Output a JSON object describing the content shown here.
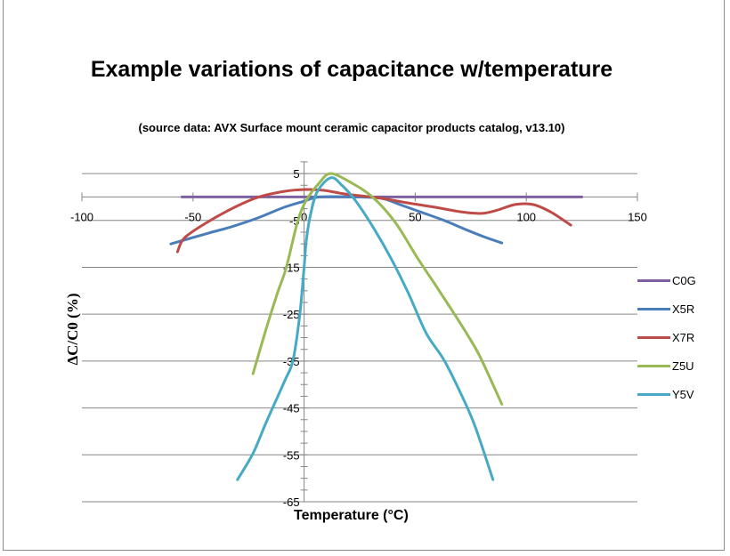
{
  "chart_data": {
    "type": "line",
    "title": "Example variations of capacitance w/temperature",
    "subtitle": "(source data: AVX Surface mount ceramic capacitor products catalog, v13.10)",
    "xlabel": "Temperature (°C)",
    "ylabel": "ΔC/C0 (%)",
    "xlim": [
      -100,
      150
    ],
    "ylim": [
      -65,
      7.5
    ],
    "x_ticks": [
      "-100",
      "-50",
      "0",
      "50",
      "100",
      "150"
    ],
    "y_ticks": [
      "5",
      "-5",
      "-15",
      "-25",
      "-35",
      "-45",
      "-55",
      "-65"
    ],
    "grid": true,
    "legend_position": "right",
    "series": [
      {
        "name": "C0G",
        "color": "#7D60A0",
        "points": [
          [
            -55,
            0
          ],
          [
            125,
            0
          ]
        ]
      },
      {
        "name": "X5R",
        "color": "#4A7EBB",
        "points": [
          [
            -60,
            -10
          ],
          [
            -43,
            -7.7
          ],
          [
            -33,
            -6.4
          ],
          [
            -21,
            -4.5
          ],
          [
            -9,
            -2.2
          ],
          [
            0,
            -0.9
          ],
          [
            7,
            0
          ],
          [
            23,
            0
          ],
          [
            35,
            -0.3
          ],
          [
            43,
            -1.6
          ],
          [
            53,
            -3.3
          ],
          [
            63,
            -5
          ],
          [
            73,
            -7
          ],
          [
            81,
            -8.5
          ],
          [
            89,
            -9.8
          ]
        ]
      },
      {
        "name": "X7R",
        "color": "#BE4B48",
        "points": [
          [
            -57,
            -11.7
          ],
          [
            -54,
            -8.8
          ],
          [
            -45,
            -5.8
          ],
          [
            -33,
            -2.6
          ],
          [
            -21,
            -0.1
          ],
          [
            -9,
            1.2
          ],
          [
            1,
            1.6
          ],
          [
            9,
            1.4
          ],
          [
            19,
            0.6
          ],
          [
            35,
            -0.3
          ],
          [
            47,
            -1.3
          ],
          [
            59,
            -2.2
          ],
          [
            71,
            -3.2
          ],
          [
            80,
            -3.5
          ],
          [
            87,
            -2.8
          ],
          [
            95,
            -1.6
          ],
          [
            103,
            -1.6
          ],
          [
            111,
            -3.2
          ],
          [
            120,
            -6
          ]
        ]
      },
      {
        "name": "Z5U",
        "color": "#98B954",
        "points": [
          [
            -23,
            -37.7
          ],
          [
            -17,
            -28
          ],
          [
            -12,
            -20.5
          ],
          [
            -8,
            -15
          ],
          [
            -3,
            -5.4
          ],
          [
            1,
            -0.7
          ],
          [
            7,
            3.1
          ],
          [
            12,
            5
          ],
          [
            21,
            3.1
          ],
          [
            31,
            -0.1
          ],
          [
            41,
            -5.4
          ],
          [
            51,
            -13
          ],
          [
            59,
            -18.7
          ],
          [
            67,
            -24.5
          ],
          [
            73,
            -29
          ],
          [
            79,
            -33.9
          ],
          [
            89,
            -44.2
          ]
        ]
      },
      {
        "name": "Y5V",
        "color": "#46AAC5",
        "points": [
          [
            -30,
            -60.3
          ],
          [
            -23,
            -54.7
          ],
          [
            -17,
            -48
          ],
          [
            -9,
            -39.5
          ],
          [
            -5,
            -34.8
          ],
          [
            -2,
            -25.3
          ],
          [
            0,
            -15
          ],
          [
            1,
            -9.2
          ],
          [
            3,
            -3.5
          ],
          [
            6,
            1.2
          ],
          [
            12,
            4.1
          ],
          [
            17,
            2.5
          ],
          [
            23,
            -0.7
          ],
          [
            31,
            -6.4
          ],
          [
            39,
            -13
          ],
          [
            47,
            -20.6
          ],
          [
            55,
            -29.1
          ],
          [
            63,
            -34.8
          ],
          [
            71,
            -42.4
          ],
          [
            77,
            -49
          ],
          [
            85,
            -60.3
          ]
        ]
      }
    ]
  }
}
